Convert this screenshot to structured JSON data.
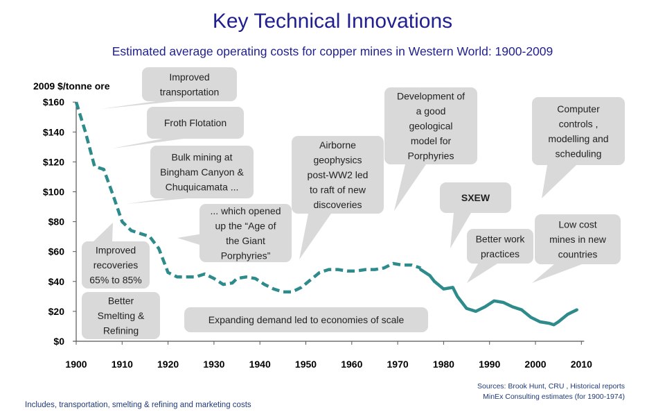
{
  "title": "Key Technical Innovations",
  "subtitle": "Estimated average operating costs for copper mines in Western World: 1900-2009",
  "sources": {
    "line1": "Sources:  Brook Hunt, CRU , Historical reports",
    "line2": "MinEx Consulting estimates (for 1900-1974)"
  },
  "footnote": "Includes, transportation,  smelting & refining and marketing costs",
  "colors": {
    "title": "#1f1f8f",
    "series": "#2e8b8b",
    "bubble": "#d9d9d9"
  },
  "chart_data": {
    "type": "line",
    "title": "Key Technical Innovations",
    "ylabel": "2009 $/tonne ore",
    "xlabel": "",
    "xlim": [
      1900,
      2010
    ],
    "ylim": [
      0,
      160
    ],
    "x_ticks": [
      1900,
      1910,
      1920,
      1930,
      1940,
      1950,
      1960,
      1970,
      1980,
      1990,
      2000,
      2010
    ],
    "y_ticks": [
      0,
      20,
      40,
      60,
      80,
      100,
      120,
      140,
      160
    ],
    "y_tick_labels": [
      "$0",
      "$20",
      "$40",
      "$60",
      "$80",
      "$100",
      "$120",
      "$140",
      "$160"
    ],
    "series": [
      {
        "name": "Estimated (MinEx, 1900-1974)",
        "style": "dashed",
        "x": [
          1900,
          1902,
          1904,
          1906,
          1908,
          1910,
          1912,
          1914,
          1916,
          1918,
          1920,
          1922,
          1924,
          1926,
          1928,
          1930,
          1932,
          1934,
          1935,
          1937,
          1939,
          1941,
          1943,
          1945,
          1947,
          1949,
          1951,
          1953,
          1955,
          1957,
          1959,
          1961,
          1963,
          1965,
          1967,
          1969,
          1971,
          1973,
          1975
        ],
        "values": [
          160,
          140,
          117,
          115,
          98,
          80,
          74,
          72,
          70,
          62,
          46,
          43,
          43,
          43,
          45,
          42,
          38,
          39,
          42,
          43,
          42,
          38,
          35,
          33,
          33,
          36,
          41,
          46,
          48,
          48,
          47,
          47,
          48,
          48,
          49,
          52,
          51,
          51,
          49
        ]
      },
      {
        "name": "Brook Hunt / CRU (1975-2009)",
        "style": "solid",
        "x": [
          1975,
          1977,
          1978,
          1980,
          1982,
          1983,
          1985,
          1987,
          1989,
          1991,
          1993,
          1995,
          1997,
          1999,
          2001,
          2003,
          2004,
          2005,
          2007,
          2009
        ],
        "values": [
          48,
          44,
          40,
          35,
          36,
          30,
          22,
          20,
          23,
          27,
          26,
          23,
          21,
          16,
          13,
          12,
          11,
          13,
          18,
          21
        ]
      }
    ],
    "annotations": [
      {
        "text": "Improved transportation",
        "lines": [
          "Improved",
          "transportation"
        ]
      },
      {
        "text": "Froth Flotation",
        "lines": [
          "Froth Flotation"
        ]
      },
      {
        "text": "Bulk mining at Bingham Canyon & Chuquicamata ...",
        "lines": [
          "Bulk mining at",
          "Bingham Canyon &",
          "Chuquicamata ..."
        ]
      },
      {
        "text": "... which opened up the “Age of the Giant Porphyries”",
        "lines": [
          "... which opened",
          "up the “Age of",
          "the  Giant",
          "Porphyries”"
        ]
      },
      {
        "text": "Improved recoveries 65% to 85%",
        "lines": [
          "Improved",
          "recoveries",
          "65%  to 85%"
        ]
      },
      {
        "text": "Better Smelting & Refining",
        "lines": [
          "Better",
          "Smelting &",
          "Refining"
        ]
      },
      {
        "text": "Airborne geophysics post-WW2 led to raft of new discoveries",
        "lines": [
          "Airborne",
          "geophysics",
          "post-WW2 led",
          "to raft of new",
          "discoveries"
        ]
      },
      {
        "text": "Development of a good geological model for Porphyries",
        "lines": [
          "Development of",
          "a good",
          "geological",
          "model for",
          "Porphyries"
        ]
      },
      {
        "text": "SXEW",
        "lines": [
          "SXEW"
        ]
      },
      {
        "text": "Better work practices",
        "lines": [
          "Better work",
          "practices"
        ]
      },
      {
        "text": "Computer controls , modelling and scheduling",
        "lines": [
          "Computer",
          "controls ,",
          "modelling and",
          "scheduling"
        ]
      },
      {
        "text": "Low cost mines in new countries",
        "lines": [
          "Low cost",
          "mines in new",
          "countries"
        ]
      },
      {
        "text": "Expanding demand led to economies of scale",
        "lines": [
          "Expanding demand led to economies of scale"
        ]
      }
    ]
  }
}
